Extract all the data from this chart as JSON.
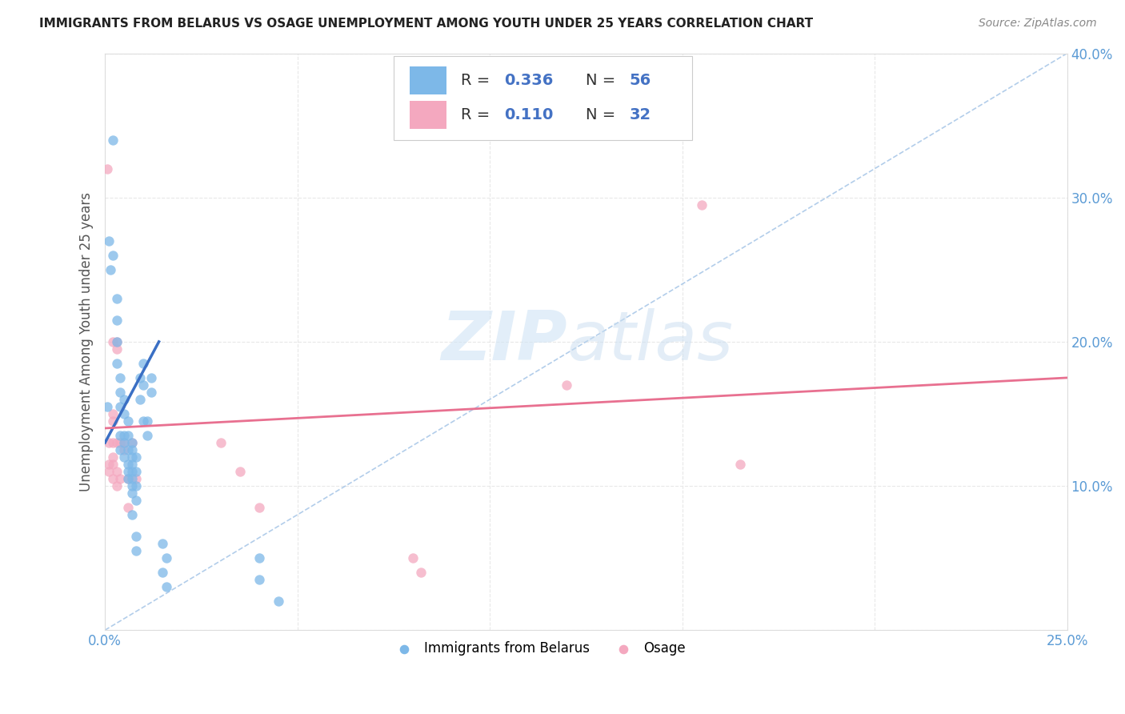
{
  "title": "IMMIGRANTS FROM BELARUS VS OSAGE UNEMPLOYMENT AMONG YOUTH UNDER 25 YEARS CORRELATION CHART",
  "source": "Source: ZipAtlas.com",
  "ylabel": "Unemployment Among Youth under 25 years",
  "xlim": [
    0,
    0.25
  ],
  "ylim": [
    0,
    0.4
  ],
  "xtick_vals": [
    0.0,
    0.05,
    0.1,
    0.15,
    0.2,
    0.25
  ],
  "ytick_vals": [
    0.0,
    0.1,
    0.2,
    0.3,
    0.4
  ],
  "xtick_labels": [
    "0.0%",
    "",
    "",
    "",
    "",
    "25.0%"
  ],
  "ytick_labels": [
    "",
    "10.0%",
    "20.0%",
    "30.0%",
    "40.0%"
  ],
  "blue_R": "0.336",
  "blue_N": "56",
  "pink_R": "0.110",
  "pink_N": "32",
  "blue_color": "#7db8e8",
  "pink_color": "#f4a8bf",
  "blue_scatter": [
    [
      0.0005,
      0.155
    ],
    [
      0.001,
      0.27
    ],
    [
      0.0015,
      0.25
    ],
    [
      0.002,
      0.34
    ],
    [
      0.002,
      0.26
    ],
    [
      0.003,
      0.23
    ],
    [
      0.003,
      0.215
    ],
    [
      0.003,
      0.185
    ],
    [
      0.003,
      0.2
    ],
    [
      0.004,
      0.175
    ],
    [
      0.004,
      0.155
    ],
    [
      0.004,
      0.165
    ],
    [
      0.004,
      0.135
    ],
    [
      0.004,
      0.125
    ],
    [
      0.005,
      0.16
    ],
    [
      0.005,
      0.15
    ],
    [
      0.005,
      0.135
    ],
    [
      0.005,
      0.13
    ],
    [
      0.005,
      0.12
    ],
    [
      0.006,
      0.145
    ],
    [
      0.006,
      0.135
    ],
    [
      0.006,
      0.125
    ],
    [
      0.006,
      0.115
    ],
    [
      0.006,
      0.11
    ],
    [
      0.006,
      0.105
    ],
    [
      0.007,
      0.13
    ],
    [
      0.007,
      0.12
    ],
    [
      0.007,
      0.11
    ],
    [
      0.007,
      0.1
    ],
    [
      0.007,
      0.125
    ],
    [
      0.007,
      0.115
    ],
    [
      0.007,
      0.105
    ],
    [
      0.007,
      0.095
    ],
    [
      0.007,
      0.08
    ],
    [
      0.008,
      0.12
    ],
    [
      0.008,
      0.11
    ],
    [
      0.008,
      0.1
    ],
    [
      0.008,
      0.09
    ],
    [
      0.008,
      0.065
    ],
    [
      0.008,
      0.055
    ],
    [
      0.009,
      0.175
    ],
    [
      0.009,
      0.16
    ],
    [
      0.01,
      0.145
    ],
    [
      0.01,
      0.185
    ],
    [
      0.01,
      0.17
    ],
    [
      0.011,
      0.145
    ],
    [
      0.011,
      0.135
    ],
    [
      0.012,
      0.175
    ],
    [
      0.012,
      0.165
    ],
    [
      0.015,
      0.06
    ],
    [
      0.015,
      0.04
    ],
    [
      0.016,
      0.05
    ],
    [
      0.016,
      0.03
    ],
    [
      0.04,
      0.05
    ],
    [
      0.04,
      0.035
    ],
    [
      0.045,
      0.02
    ]
  ],
  "pink_scatter": [
    [
      0.0005,
      0.32
    ],
    [
      0.001,
      0.13
    ],
    [
      0.001,
      0.115
    ],
    [
      0.001,
      0.11
    ],
    [
      0.002,
      0.2
    ],
    [
      0.002,
      0.15
    ],
    [
      0.002,
      0.145
    ],
    [
      0.002,
      0.13
    ],
    [
      0.002,
      0.12
    ],
    [
      0.002,
      0.115
    ],
    [
      0.002,
      0.105
    ],
    [
      0.003,
      0.2
    ],
    [
      0.003,
      0.195
    ],
    [
      0.003,
      0.13
    ],
    [
      0.003,
      0.11
    ],
    [
      0.003,
      0.1
    ],
    [
      0.004,
      0.13
    ],
    [
      0.004,
      0.105
    ],
    [
      0.005,
      0.13
    ],
    [
      0.005,
      0.125
    ],
    [
      0.006,
      0.105
    ],
    [
      0.006,
      0.085
    ],
    [
      0.007,
      0.13
    ],
    [
      0.008,
      0.105
    ],
    [
      0.03,
      0.13
    ],
    [
      0.035,
      0.11
    ],
    [
      0.04,
      0.085
    ],
    [
      0.08,
      0.05
    ],
    [
      0.082,
      0.04
    ],
    [
      0.12,
      0.17
    ],
    [
      0.155,
      0.295
    ],
    [
      0.165,
      0.115
    ]
  ],
  "blue_line_x": [
    0.0,
    0.014
  ],
  "blue_line_y": [
    0.13,
    0.2
  ],
  "pink_line_x": [
    0.0,
    0.25
  ],
  "pink_line_y": [
    0.14,
    0.175
  ],
  "dash_line_x": [
    0.0,
    0.25
  ],
  "dash_line_y": [
    0.0,
    0.4
  ],
  "watermark_zip": "ZIP",
  "watermark_atlas": "atlas",
  "background_color": "#ffffff",
  "grid_color": "#e8e8e8",
  "tick_color": "#5b9bd5",
  "title_color": "#222222",
  "source_color": "#888888",
  "ylabel_color": "#555555"
}
